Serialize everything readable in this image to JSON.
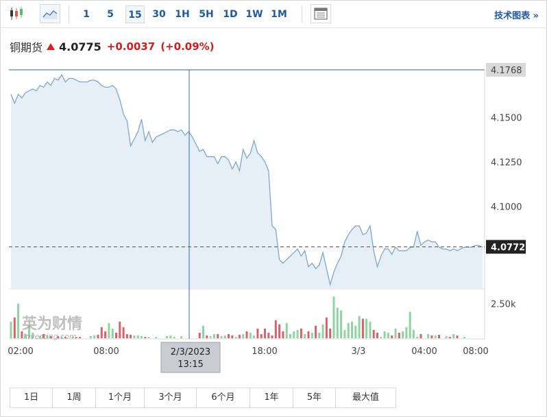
{
  "toolbar": {
    "timeframes": [
      "1",
      "5",
      "15",
      "30",
      "1H",
      "5H",
      "1D",
      "1W",
      "1M"
    ],
    "active_timeframe": "15",
    "tech_label": "技术图表 »"
  },
  "quote": {
    "name": "铜期货",
    "price": "4.0775",
    "change": "+0.0037",
    "change_pct": "(+0.09%)"
  },
  "colors": {
    "line": "#7ea7cf",
    "area": "#e6eef6",
    "up_volume": "#8fd4a0",
    "down_volume": "#d9626a",
    "accent": "#1f5aa6",
    "negative": "#d31d1d"
  },
  "crosshair": {
    "date": "2/3/2023",
    "time": "13:15"
  },
  "watermark": "英为财情 Investing.com",
  "ranges": [
    "1日",
    "1周",
    "1个月",
    "3个月",
    "6个月",
    "1年",
    "5年",
    "最大值"
  ],
  "chart_data": {
    "type": "line",
    "y_ticks": [
      "4.1500",
      "4.1250",
      "4.1000"
    ],
    "y_tick_values": [
      4.15,
      4.125,
      4.1
    ],
    "high_label": "4.1768",
    "high_value": 4.1768,
    "last_label": "4.0772",
    "last_value": 4.0772,
    "x_ticks": [
      "02:00",
      "08:00",
      "18:00",
      "3/3",
      "04:00",
      "08:00"
    ],
    "volume_tick": "2.50k",
    "volume_tick_value": 2500,
    "series": [
      {
        "values": [
          4.163,
          4.158,
          4.163,
          4.161,
          4.164,
          4.165,
          4.166,
          4.165,
          4.168,
          4.167,
          4.17,
          4.168,
          4.172,
          4.171,
          4.174,
          4.17,
          4.172,
          4.172,
          4.171,
          4.17,
          4.17,
          4.17,
          4.171,
          4.171,
          4.17,
          4.168,
          4.167,
          4.167,
          4.168,
          4.166,
          4.16,
          4.152,
          4.148,
          4.134,
          4.138,
          4.142,
          4.149,
          4.137,
          4.142,
          4.136,
          4.139,
          4.14,
          4.141,
          4.142,
          4.143,
          4.143,
          4.142,
          4.143,
          4.14,
          4.142,
          4.139,
          4.135,
          4.131,
          4.132,
          4.128,
          4.128,
          4.128,
          4.124,
          4.128,
          4.128,
          4.126,
          4.121,
          4.125,
          4.12,
          4.132,
          4.127,
          4.13,
          4.137,
          4.13,
          4.128,
          4.125,
          4.12,
          4.089,
          4.087,
          4.07,
          4.068,
          4.07,
          4.072,
          4.074,
          4.076,
          4.072,
          4.075,
          4.066,
          4.068,
          4.065,
          4.067,
          4.074,
          4.065,
          4.056,
          4.063,
          4.068,
          4.072,
          4.08,
          4.084,
          4.087,
          4.089,
          4.089,
          4.084,
          4.085,
          4.089,
          4.075,
          4.066,
          4.072,
          4.076,
          4.076,
          4.073,
          4.077,
          4.075,
          4.075,
          4.075,
          4.077,
          4.077,
          4.086,
          4.078,
          4.08,
          4.081,
          4.08,
          4.08,
          4.077,
          4.076,
          4.076,
          4.075,
          4.076,
          4.075,
          4.076,
          4.077,
          4.077,
          4.077,
          4.078,
          4.078,
          4.077
        ]
      }
    ],
    "volume": [
      1200,
      1500,
      2500,
      500,
      300,
      900,
      400,
      0,
      150,
      300,
      200,
      150,
      0,
      150,
      100,
      100,
      0,
      120,
      80,
      100,
      0,
      0,
      150,
      200,
      250,
      800,
      500,
      1100,
      700,
      400,
      1200,
      800,
      300,
      250,
      200,
      200,
      150,
      100,
      100,
      0,
      100,
      0,
      0,
      150,
      200,
      100,
      0,
      150,
      0,
      0,
      0,
      0,
      400,
      900,
      200,
      150,
      300,
      300,
      150,
      200,
      300,
      200,
      100,
      250,
      300,
      500,
      400,
      200,
      700,
      300,
      700,
      400,
      200,
      1300,
      1000,
      500,
      1100,
      300,
      500,
      600,
      700,
      300,
      500,
      400,
      900,
      400,
      1000,
      1500,
      700,
      3000,
      2200,
      2000,
      600,
      1100,
      1200,
      900,
      1600,
      1400,
      1400,
      1200,
      600,
      400,
      100,
      500,
      400,
      200,
      700,
      400,
      500,
      800,
      1900,
      600,
      100,
      300,
      0,
      300,
      200,
      200,
      250,
      0,
      150,
      100,
      300,
      200,
      0,
      100,
      0,
      0,
      0,
      0,
      0
    ]
  }
}
